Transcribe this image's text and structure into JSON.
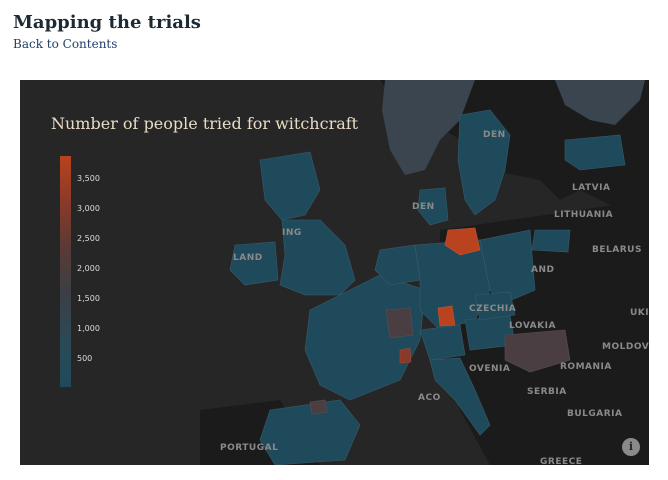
{
  "header": {
    "title": "Mapping the trials",
    "back_link": "Back to Contents"
  },
  "map": {
    "title": "Number of people tried for witchcraft",
    "colorbar_ticks": [
      "3,500",
      "3,000",
      "2,500",
      "2,000",
      "1,500",
      "1,000",
      "500"
    ],
    "colors": {
      "low": "#1f4a5c",
      "mid": "#4a3e42",
      "high": "#b8431e",
      "land": "#1a1a1a",
      "water": "#262626"
    },
    "country_labels": {
      "sweden": "DEN",
      "latvia": "LATVIA",
      "lithuania": "LITHUANIA",
      "belarus": "BELARUS",
      "poland": "AND",
      "czechia": "CZECHIA",
      "slovakia": "LOVAKIA",
      "ukraine": "UKI",
      "moldova": "MOLDOV",
      "romania": "ROMANIA",
      "slovenia": "OVENIA",
      "serbia": "SERBIA",
      "bulgaria": "BULGARIA",
      "portugal": "PORTUGAL",
      "greece": "GREECE",
      "monaco": "ACO",
      "denmark": "DEN",
      "ireland": "LAND",
      "kingdom": "ING"
    },
    "info_icon": "info-icon"
  }
}
